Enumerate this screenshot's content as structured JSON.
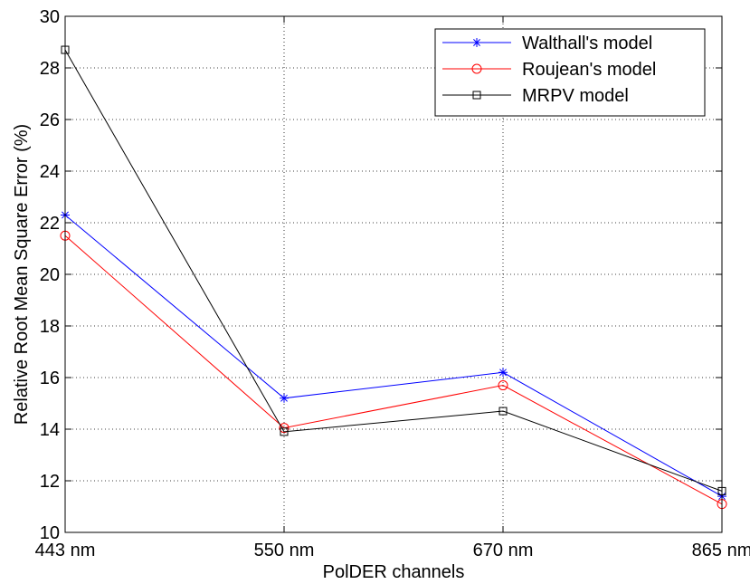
{
  "chart_data": {
    "type": "line",
    "title": "",
    "xlabel": "PolDER channels",
    "ylabel": "Relative Root Mean Square Error (%)",
    "categories": [
      "443 nm",
      "550 nm",
      "670 nm",
      "865 nm"
    ],
    "ylim": [
      10,
      30
    ],
    "yticks": [
      10,
      12,
      14,
      16,
      18,
      20,
      22,
      24,
      26,
      28,
      30
    ],
    "grid": true,
    "grid_style": "dotted",
    "legend_position": "top-right",
    "series": [
      {
        "name": "Walthall's model",
        "values": [
          22.3,
          15.2,
          16.2,
          11.4
        ],
        "color": "#0000ff",
        "marker": "asterisk"
      },
      {
        "name": "Roujean's model",
        "values": [
          21.5,
          14.05,
          15.7,
          11.1
        ],
        "color": "#ff0000",
        "marker": "circle"
      },
      {
        "name": "MRPV model",
        "values": [
          28.7,
          13.9,
          14.7,
          11.6
        ],
        "color": "#000000",
        "marker": "square"
      }
    ]
  }
}
